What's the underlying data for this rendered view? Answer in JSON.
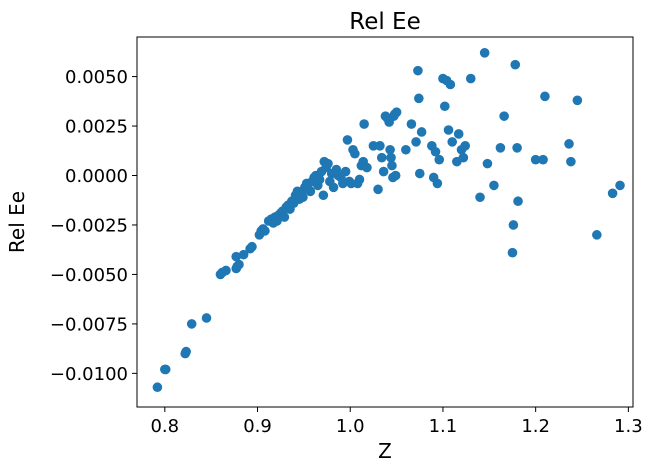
{
  "chart_data": {
    "type": "scatter",
    "title": "Rel Ee",
    "xlabel": "Z",
    "ylabel": "Rel Ee",
    "xlim": [
      0.77,
      1.305
    ],
    "ylim": [
      -0.0117,
      0.007
    ],
    "x_ticks": [
      0.8,
      0.9,
      1.0,
      1.1,
      1.2,
      1.3
    ],
    "x_tick_labels": [
      "0.8",
      "0.9",
      "1.0",
      "1.1",
      "1.2",
      "1.3"
    ],
    "y_ticks": [
      -0.01,
      -0.0075,
      -0.005,
      -0.0025,
      0.0,
      0.0025,
      0.005
    ],
    "y_tick_labels": [
      "−0.0100",
      "−0.0075",
      "−0.0050",
      "−0.0025",
      "0.0000",
      "0.0025",
      "0.0050"
    ],
    "grid": false,
    "legend": "none",
    "marker_color": "#1f77b4",
    "points": [
      [
        0.792,
        -0.0107
      ],
      [
        0.8,
        -0.0098
      ],
      [
        0.801,
        -0.0098
      ],
      [
        0.822,
        -0.009
      ],
      [
        0.823,
        -0.0089
      ],
      [
        0.829,
        -0.0075
      ],
      [
        0.845,
        -0.0072
      ],
      [
        0.86,
        -0.005
      ],
      [
        0.862,
        -0.0049
      ],
      [
        0.866,
        -0.0048
      ],
      [
        0.877,
        -0.0041
      ],
      [
        0.877,
        -0.0047
      ],
      [
        0.878,
        -0.0046
      ],
      [
        0.88,
        -0.0045
      ],
      [
        0.885,
        -0.004
      ],
      [
        0.892,
        -0.0037
      ],
      [
        0.894,
        -0.0036
      ],
      [
        0.902,
        -0.003
      ],
      [
        0.904,
        -0.0028
      ],
      [
        0.906,
        -0.0027
      ],
      [
        0.908,
        -0.0028
      ],
      [
        0.912,
        -0.0023
      ],
      [
        0.915,
        -0.0022
      ],
      [
        0.917,
        -0.0024
      ],
      [
        0.919,
        -0.0021
      ],
      [
        0.921,
        -0.0023
      ],
      [
        0.923,
        -0.002
      ],
      [
        0.925,
        -0.0019
      ],
      [
        0.927,
        -0.0018
      ],
      [
        0.929,
        -0.0021
      ],
      [
        0.931,
        -0.0016
      ],
      [
        0.933,
        -0.0015
      ],
      [
        0.935,
        -0.0017
      ],
      [
        0.937,
        -0.0013
      ],
      [
        0.939,
        -0.0014
      ],
      [
        0.941,
        -0.001
      ],
      [
        0.943,
        -0.0008
      ],
      [
        0.945,
        -0.0012
      ],
      [
        0.947,
        -0.0009
      ],
      [
        0.949,
        -0.0011
      ],
      [
        0.951,
        -0.0006
      ],
      [
        0.953,
        -0.0004
      ],
      [
        0.955,
        -0.0007
      ],
      [
        0.957,
        -0.0008
      ],
      [
        0.959,
        -0.0003
      ],
      [
        0.961,
        -0.0001
      ],
      [
        0.963,
        0.0
      ],
      [
        0.965,
        -0.0005
      ],
      [
        0.967,
        -0.0002
      ],
      [
        0.969,
        0.0002
      ],
      [
        0.971,
        -0.001
      ],
      [
        0.972,
        0.0007
      ],
      [
        0.974,
        0.0004
      ],
      [
        0.976,
        0.0006
      ],
      [
        0.978,
        -0.0003
      ],
      [
        0.98,
        0.0001
      ],
      [
        0.982,
        -0.0006
      ],
      [
        0.985,
        0.0003
      ],
      [
        0.987,
        0.0
      ],
      [
        0.99,
        -0.0001
      ],
      [
        0.992,
        -0.0004
      ],
      [
        0.995,
        0.0002
      ],
      [
        0.997,
        0.0018
      ],
      [
        0.999,
        -0.0003
      ],
      [
        1.001,
        -0.0004
      ],
      [
        1.003,
        0.0013
      ],
      [
        1.005,
        0.0011
      ],
      [
        1.008,
        -0.0004
      ],
      [
        1.01,
        -0.0002
      ],
      [
        1.012,
        0.0005
      ],
      [
        1.014,
        0.0007
      ],
      [
        1.015,
        0.0026
      ],
      [
        1.018,
        0.0004
      ],
      [
        1.025,
        0.0015
      ],
      [
        1.03,
        -0.0007
      ],
      [
        1.032,
        0.0015
      ],
      [
        1.034,
        0.0009
      ],
      [
        1.036,
        0.0002
      ],
      [
        1.038,
        0.003
      ],
      [
        1.04,
        0.0029
      ],
      [
        1.042,
        0.0027
      ],
      [
        1.043,
        0.0013
      ],
      [
        1.044,
        0.0009
      ],
      [
        1.045,
        0.0005
      ],
      [
        1.046,
        -0.0001
      ],
      [
        1.047,
        0.003
      ],
      [
        1.048,
        0.0031
      ],
      [
        1.049,
        0.0
      ],
      [
        1.05,
        0.0032
      ],
      [
        1.06,
        0.0013
      ],
      [
        1.066,
        0.0026
      ],
      [
        1.071,
        0.0017
      ],
      [
        1.073,
        0.0053
      ],
      [
        1.074,
        0.0039
      ],
      [
        1.075,
        0.0001
      ],
      [
        1.077,
        0.0022
      ],
      [
        1.088,
        0.0015
      ],
      [
        1.09,
        -0.0001
      ],
      [
        1.092,
        0.0012
      ],
      [
        1.094,
        -0.0004
      ],
      [
        1.096,
        0.0008
      ],
      [
        1.1,
        0.0049
      ],
      [
        1.102,
        0.0035
      ],
      [
        1.104,
        0.0048
      ],
      [
        1.106,
        0.0023
      ],
      [
        1.108,
        0.0046
      ],
      [
        1.11,
        0.0017
      ],
      [
        1.115,
        0.0007
      ],
      [
        1.117,
        0.0021
      ],
      [
        1.12,
        0.0013
      ],
      [
        1.122,
        0.0009
      ],
      [
        1.124,
        0.0015
      ],
      [
        1.13,
        0.0049
      ],
      [
        1.14,
        -0.0011
      ],
      [
        1.145,
        0.0062
      ],
      [
        1.148,
        0.0006
      ],
      [
        1.155,
        -0.0005
      ],
      [
        1.162,
        0.0014
      ],
      [
        1.166,
        0.003
      ],
      [
        1.175,
        -0.0039
      ],
      [
        1.176,
        -0.0025
      ],
      [
        1.178,
        0.0056
      ],
      [
        1.18,
        0.0014
      ],
      [
        1.181,
        -0.0013
      ],
      [
        1.2,
        0.0008
      ],
      [
        1.208,
        0.0008
      ],
      [
        1.21,
        0.004
      ],
      [
        1.236,
        0.0016
      ],
      [
        1.238,
        0.0007
      ],
      [
        1.245,
        0.0038
      ],
      [
        1.266,
        -0.003
      ],
      [
        1.283,
        -0.0009
      ],
      [
        1.291,
        -0.0005
      ]
    ]
  }
}
